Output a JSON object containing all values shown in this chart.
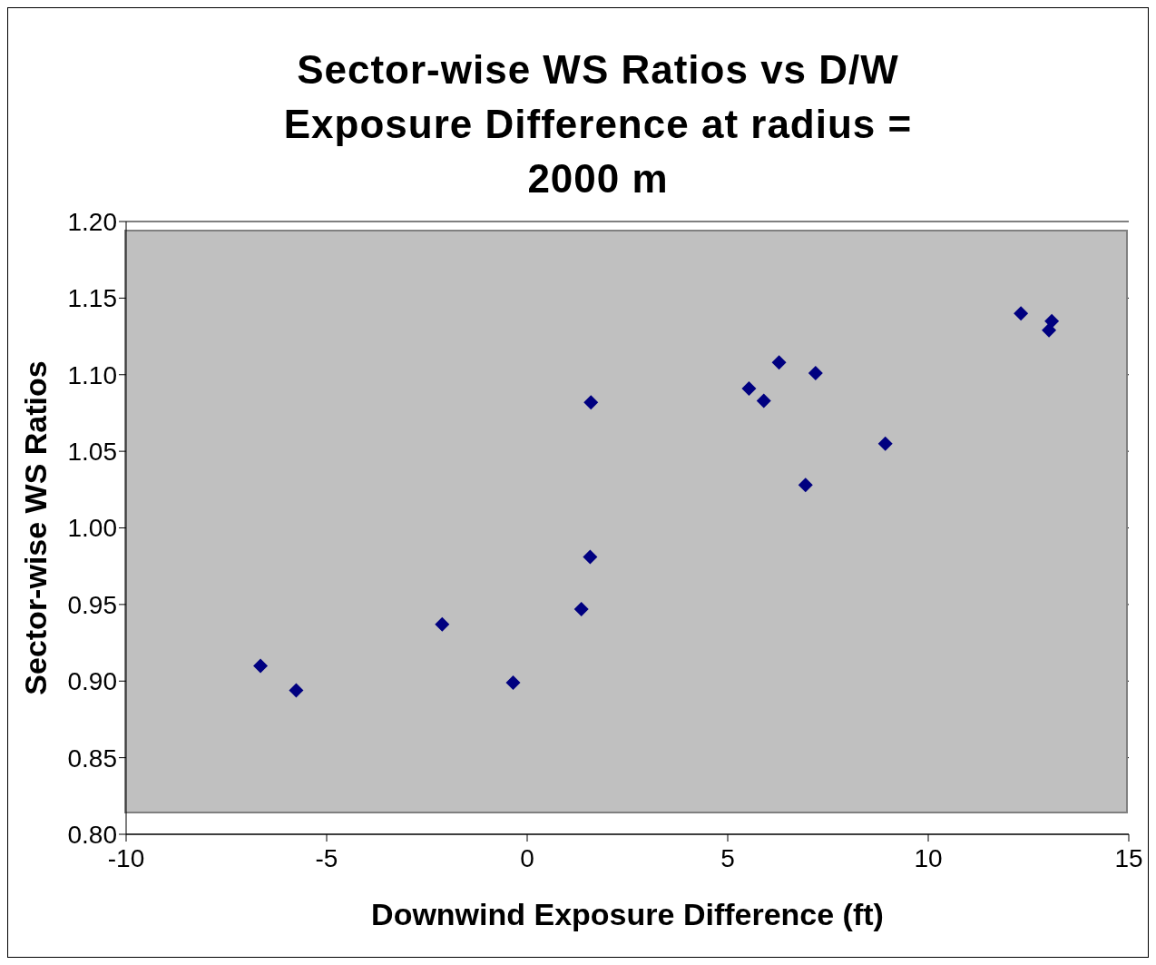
{
  "chart_data": {
    "type": "scatter",
    "title": "Sector-wise WS Ratios vs D/W Exposure Difference at radius = 2000 m",
    "xlabel": "Downwind Exposure Difference (ft)",
    "ylabel": "Sector-wise WS Ratios",
    "x": [
      -6.65,
      -5.76,
      -2.12,
      -0.35,
      1.35,
      1.57,
      1.59,
      5.53,
      5.9,
      6.28,
      6.94,
      7.19,
      8.93,
      12.31,
      13.01,
      13.08
    ],
    "values": [
      0.91,
      0.894,
      0.937,
      0.899,
      0.947,
      0.981,
      1.082,
      1.091,
      1.083,
      1.108,
      1.028,
      1.101,
      1.055,
      1.14,
      1.129,
      1.135
    ],
    "color": "#000080",
    "marker": "diamond",
    "grid": "y",
    "legend": false,
    "xlim": [
      -10,
      15
    ],
    "xticks": [
      -10,
      -5,
      0,
      5,
      10,
      15
    ],
    "ylim": [
      0.8,
      1.2
    ],
    "yticks": [
      {
        "value": 0.8,
        "label": "0.80"
      },
      {
        "value": 0.85,
        "label": "0.85"
      },
      {
        "value": 0.9,
        "label": "0.90"
      },
      {
        "value": 0.95,
        "label": "0.95"
      },
      {
        "value": 1.0,
        "label": "1.00"
      },
      {
        "value": 1.05,
        "label": "1.05"
      },
      {
        "value": 1.1,
        "label": "1.10"
      },
      {
        "value": 1.15,
        "label": "1.15"
      },
      {
        "value": 1.2,
        "label": "1.20"
      }
    ]
  }
}
